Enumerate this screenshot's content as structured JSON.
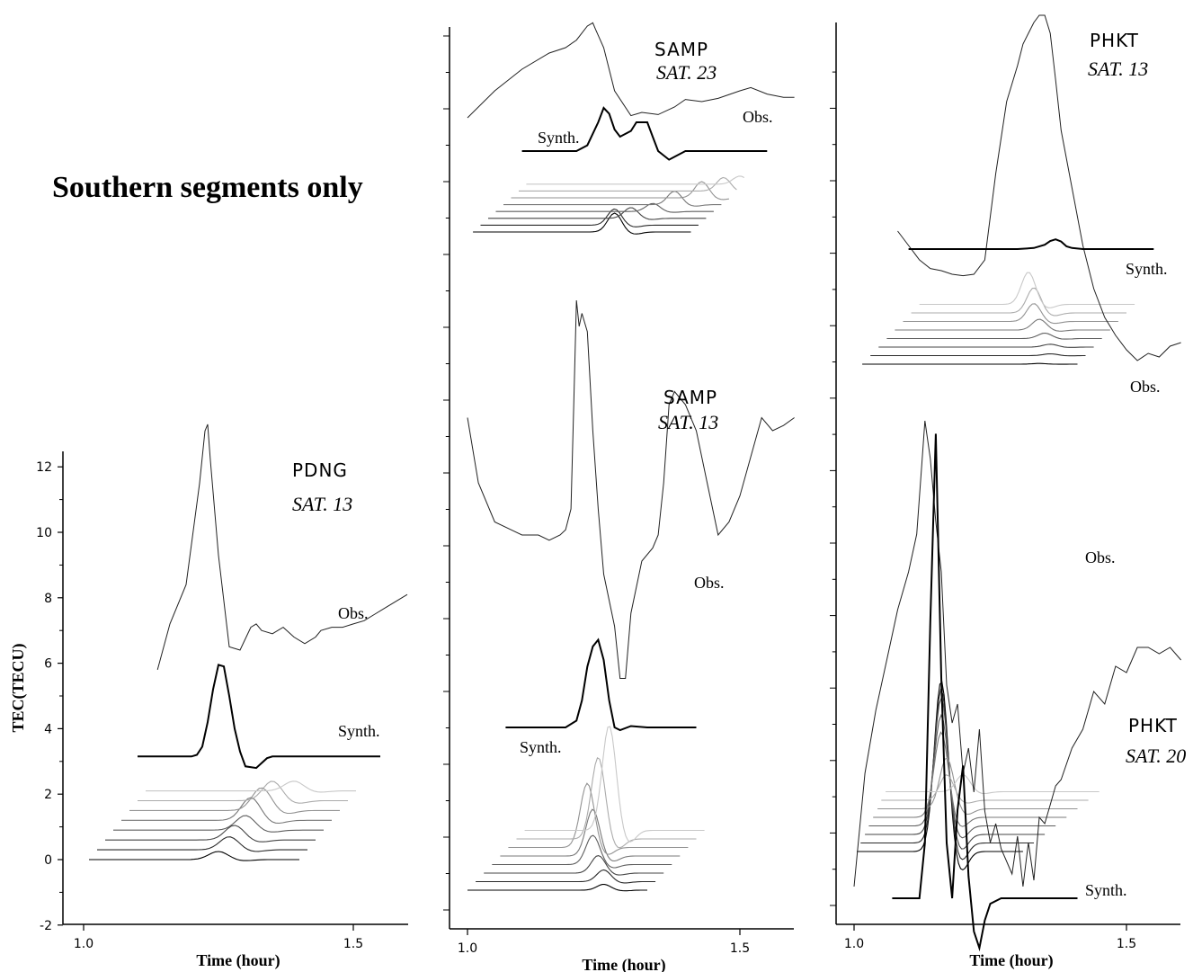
{
  "figure": {
    "title": "Southern segments only"
  },
  "chart_data": [
    {
      "type": "line",
      "station": "PDNG",
      "satellite": "SAT. 13",
      "xlabel": "Time (hour)",
      "ylabel": "TEC(TECU)",
      "xticks": [
        "1.0",
        "1.5"
      ],
      "yticks": [
        "-2",
        "0",
        "2",
        "4",
        "6",
        "8",
        "10",
        "12"
      ],
      "xlim": [
        0.98,
        1.6
      ],
      "ylim": [
        -2,
        12.6
      ],
      "labels": {
        "obs": "Obs.",
        "synth": "Synth."
      },
      "series": [
        {
          "name": "Obs.",
          "x": [
            1.137,
            1.16,
            1.19,
            1.215,
            1.225,
            1.23,
            1.235,
            1.25,
            1.27,
            1.29,
            1.31,
            1.32,
            1.33,
            1.35,
            1.37,
            1.39,
            1.41,
            1.43,
            1.44,
            1.46,
            1.48,
            1.5,
            1.52,
            1.54,
            1.56,
            1.58,
            1.6
          ],
          "y": [
            5.8,
            7.2,
            8.4,
            11.5,
            13.1,
            13.3,
            12.2,
            9.3,
            6.5,
            6.4,
            7.1,
            7.2,
            7.0,
            6.9,
            7.1,
            6.8,
            6.6,
            6.8,
            7.0,
            7.1,
            7.1,
            7.2,
            7.3,
            7.5,
            7.7,
            7.9,
            8.1
          ]
        },
        {
          "name": "Synth.",
          "x": [
            1.1,
            1.18,
            1.2,
            1.21,
            1.22,
            1.23,
            1.24,
            1.25,
            1.26,
            1.27,
            1.28,
            1.29,
            1.3,
            1.32,
            1.33,
            1.34,
            1.35,
            1.37,
            1.4,
            1.45,
            1.55
          ],
          "y": [
            3.15,
            3.15,
            3.15,
            3.2,
            3.45,
            4.2,
            5.2,
            5.95,
            5.9,
            5.0,
            4.0,
            3.3,
            2.85,
            2.8,
            2.95,
            3.1,
            3.15,
            3.15,
            3.15,
            3.15,
            3.15
          ]
        }
      ],
      "stack": {
        "count": 8,
        "x0": [
          1.01,
          1.025,
          1.04,
          1.055,
          1.07,
          1.085,
          1.1,
          1.115
        ],
        "x1": [
          1.4,
          1.415,
          1.43,
          1.445,
          1.46,
          1.475,
          1.49,
          1.505
        ],
        "y": [
          0.0,
          0.3,
          0.6,
          0.9,
          1.2,
          1.5,
          1.8,
          2.1
        ],
        "peak_x": [
          1.25,
          1.27,
          1.28,
          1.3,
          1.31,
          1.33,
          1.35,
          1.39
        ],
        "peak_amp": [
          0.25,
          0.4,
          0.45,
          0.45,
          0.7,
          0.7,
          0.6,
          0.3
        ],
        "colors": [
          "#000000",
          "#2a2a2a",
          "#444444",
          "#5e5e5e",
          "#787878",
          "#929292",
          "#ababab",
          "#c8c8c8"
        ]
      }
    },
    {
      "type": "line",
      "station": "SAMP",
      "satellite": "SAT. 23",
      "labels": {
        "obs": "Obs.",
        "synth": "Synth."
      },
      "xlabel": "Time (hour)",
      "xticks": [
        "1.0",
        "1.5"
      ],
      "series": [
        {
          "name": "Obs.",
          "x": [
            1.0,
            1.05,
            1.1,
            1.15,
            1.18,
            1.2,
            1.22,
            1.23,
            1.235,
            1.25,
            1.27,
            1.3,
            1.32,
            1.35,
            1.38,
            1.4,
            1.43,
            1.46,
            1.5,
            1.52,
            1.55,
            1.58,
            1.6
          ],
          "y": [
            0.0,
            0.25,
            0.45,
            0.6,
            0.65,
            0.72,
            0.85,
            0.88,
            0.82,
            0.65,
            0.25,
            0.02,
            0.05,
            0.03,
            0.1,
            0.17,
            0.15,
            0.18,
            0.25,
            0.28,
            0.22,
            0.19,
            0.19
          ]
        },
        {
          "name": "Synth.",
          "x": [
            1.1,
            1.2,
            1.22,
            1.24,
            1.25,
            1.26,
            1.27,
            1.28,
            1.3,
            1.31,
            1.33,
            1.34,
            1.35,
            1.37,
            1.38,
            1.4,
            1.42,
            1.55
          ],
          "y": [
            0.0,
            0.0,
            0.04,
            0.2,
            0.3,
            0.26,
            0.15,
            0.1,
            0.14,
            0.2,
            0.2,
            0.1,
            0.0,
            -0.06,
            -0.04,
            0.0,
            0.0,
            0.0
          ]
        }
      ],
      "stack": {
        "count": 8,
        "x0": [
          1.01,
          1.024,
          1.038,
          1.052,
          1.066,
          1.08,
          1.094,
          1.108
        ],
        "x1": [
          1.41,
          1.424,
          1.438,
          1.452,
          1.466,
          1.48,
          1.494,
          1.508
        ],
        "peak_x": [
          1.27,
          1.27,
          1.3,
          1.34,
          1.38,
          1.43,
          1.47,
          1.5
        ],
        "peak_amp": [
          0.35,
          0.3,
          0.2,
          0.15,
          0.25,
          0.3,
          0.25,
          0.15
        ],
        "colors": [
          "#000000",
          "#2a2a2a",
          "#444444",
          "#5e5e5e",
          "#787878",
          "#929292",
          "#ababab",
          "#c8c8c8"
        ]
      }
    },
    {
      "type": "line",
      "station": "SAMP",
      "satellite": "SAT. 13",
      "labels": {
        "obs": "Obs.",
        "synth": "Synth."
      },
      "series": [
        {
          "name": "Obs.",
          "x": [
            1.0,
            1.02,
            1.05,
            1.08,
            1.1,
            1.13,
            1.15,
            1.17,
            1.18,
            1.19,
            1.195,
            1.2,
            1.205,
            1.21,
            1.22,
            1.23,
            1.24,
            1.25,
            1.27,
            1.28,
            1.29,
            1.3,
            1.32,
            1.34,
            1.35,
            1.36,
            1.37,
            1.38,
            1.4,
            1.42,
            1.44,
            1.46,
            1.48,
            1.5,
            1.52,
            1.54,
            1.56,
            1.58,
            1.6
          ],
          "y": [
            0.55,
            0.3,
            0.15,
            0.12,
            0.1,
            0.1,
            0.08,
            0.1,
            0.12,
            0.2,
            0.6,
            1.0,
            0.9,
            0.95,
            0.88,
            0.5,
            0.2,
            -0.05,
            -0.25,
            -0.45,
            -0.45,
            -0.2,
            0.0,
            0.05,
            0.1,
            0.3,
            0.6,
            0.65,
            0.6,
            0.5,
            0.3,
            0.1,
            0.15,
            0.25,
            0.4,
            0.55,
            0.5,
            0.52,
            0.55
          ]
        },
        {
          "name": "Synth.",
          "x": [
            1.07,
            1.18,
            1.2,
            1.21,
            1.22,
            1.23,
            1.24,
            1.25,
            1.26,
            1.27,
            1.28,
            1.3,
            1.33,
            1.42
          ],
          "y": [
            0.0,
            0.0,
            0.05,
            0.2,
            0.45,
            0.6,
            0.65,
            0.5,
            0.2,
            0.0,
            -0.02,
            0.01,
            0.0,
            0.0
          ]
        }
      ],
      "stack": {
        "count": 8,
        "x0": [
          1.0,
          1.015,
          1.03,
          1.045,
          1.06,
          1.075,
          1.09,
          1.105
        ],
        "x1": [
          1.33,
          1.345,
          1.36,
          1.375,
          1.39,
          1.405,
          1.42,
          1.435
        ],
        "peak_x": [
          1.25,
          1.25,
          1.24,
          1.23,
          1.23,
          1.22,
          1.24,
          1.26
        ],
        "peak_amp": [
          0.05,
          0.1,
          0.15,
          0.25,
          0.4,
          0.55,
          0.7,
          0.9
        ],
        "colors": [
          "#000000",
          "#2a2a2a",
          "#444444",
          "#5e5e5e",
          "#787878",
          "#929292",
          "#ababab",
          "#c8c8c8"
        ]
      }
    },
    {
      "type": "line",
      "station": "PHKT",
      "satellite": "SAT. 13",
      "labels": {
        "obs": "Obs.",
        "synth": "Synth."
      },
      "series": [
        {
          "name": "Obs.",
          "x": [
            1.08,
            1.1,
            1.12,
            1.14,
            1.16,
            1.18,
            1.2,
            1.22,
            1.24,
            1.26,
            1.28,
            1.3,
            1.31,
            1.33,
            1.34,
            1.35,
            1.36,
            1.37,
            1.38,
            1.4,
            1.42,
            1.44,
            1.46,
            1.48,
            1.5,
            1.52,
            1.54,
            1.56,
            1.58,
            1.6
          ],
          "y": [
            0.6,
            0.4,
            0.2,
            0.08,
            0.05,
            0.0,
            -0.02,
            0.0,
            0.2,
            1.4,
            2.4,
            2.9,
            3.2,
            3.5,
            3.6,
            3.6,
            3.35,
            2.7,
            2.0,
            1.2,
            0.4,
            -0.2,
            -0.6,
            -0.85,
            -1.05,
            -1.2,
            -1.1,
            -1.15,
            -1.0,
            -0.95
          ]
        },
        {
          "name": "Synth.",
          "x": [
            1.1,
            1.3,
            1.33,
            1.35,
            1.36,
            1.37,
            1.38,
            1.39,
            1.4,
            1.42,
            1.44,
            1.55
          ],
          "y": [
            0.0,
            0.0,
            0.02,
            0.08,
            0.15,
            0.18,
            0.14,
            0.05,
            0.02,
            0.0,
            0.0,
            0.0
          ]
        }
      ],
      "stack": {
        "count": 8,
        "x0": [
          1.015,
          1.03,
          1.045,
          1.06,
          1.075,
          1.09,
          1.105,
          1.12
        ],
        "x1": [
          1.41,
          1.425,
          1.44,
          1.455,
          1.47,
          1.485,
          1.5,
          1.515
        ],
        "peak_x": [
          1.34,
          1.36,
          1.36,
          1.35,
          1.34,
          1.33,
          1.33,
          1.32
        ],
        "peak_amp": [
          0.02,
          0.05,
          0.08,
          0.15,
          0.3,
          0.5,
          0.7,
          0.9
        ],
        "colors": [
          "#000000",
          "#2a2a2a",
          "#444444",
          "#5e5e5e",
          "#787878",
          "#929292",
          "#ababab",
          "#c8c8c8"
        ]
      }
    },
    {
      "type": "line",
      "station": "PHKT",
      "satellite": "SAT. 20",
      "labels": {
        "obs": "Obs.",
        "synth": "Synth."
      },
      "xlabel": "Time (hour)",
      "xticks": [
        "1.0",
        "1.5"
      ],
      "series": [
        {
          "name": "Obs.",
          "x": [
            1.0,
            1.02,
            1.04,
            1.06,
            1.08,
            1.1,
            1.115,
            1.125,
            1.13,
            1.14,
            1.15,
            1.16,
            1.17,
            1.18,
            1.19,
            1.2,
            1.21,
            1.22,
            1.23,
            1.24,
            1.25,
            1.26,
            1.27,
            1.28,
            1.29,
            1.3,
            1.31,
            1.32,
            1.33,
            1.34,
            1.35,
            1.36,
            1.37,
            1.38,
            1.4,
            1.42,
            1.44,
            1.46,
            1.48,
            1.5,
            1.52,
            1.54,
            1.56,
            1.58,
            1.6
          ],
          "y": [
            -0.9,
            0.0,
            0.5,
            0.9,
            1.3,
            1.6,
            1.9,
            2.5,
            2.8,
            2.5,
            2.0,
            1.6,
            0.7,
            0.4,
            0.55,
            0.0,
            0.2,
            -0.15,
            0.35,
            -0.3,
            -0.55,
            -0.4,
            -0.6,
            -0.7,
            -0.8,
            -0.5,
            -0.9,
            -0.55,
            -0.85,
            -0.35,
            -0.4,
            -0.25,
            -0.1,
            -0.05,
            0.2,
            0.35,
            0.65,
            0.55,
            0.85,
            0.8,
            1.0,
            1.0,
            0.95,
            1.0,
            0.9
          ]
        },
        {
          "name": "Synth.",
          "x": [
            1.07,
            1.12,
            1.13,
            1.14,
            1.15,
            1.16,
            1.17,
            1.18,
            1.19,
            1.2,
            1.21,
            1.22,
            1.23,
            1.24,
            1.25,
            1.27,
            1.3,
            1.41
          ],
          "y": [
            0.0,
            0.0,
            0.5,
            2.5,
            4.2,
            2.0,
            0.5,
            0.0,
            0.8,
            1.2,
            0.2,
            -0.3,
            -0.45,
            -0.2,
            -0.05,
            0.0,
            0.0,
            0.0
          ]
        }
      ],
      "stack": {
        "count": 8,
        "x0": [
          1.005,
          1.012,
          1.02,
          1.027,
          1.035,
          1.043,
          1.05,
          1.058
        ],
        "x1": [
          1.31,
          1.33,
          1.35,
          1.37,
          1.39,
          1.41,
          1.43,
          1.45
        ],
        "peak_x": [
          1.16,
          1.16,
          1.16,
          1.16,
          1.16,
          1.17,
          1.17,
          1.2
        ],
        "peak_amp": [
          2.0,
          1.8,
          1.6,
          1.3,
          1.0,
          0.6,
          0.3,
          0.2
        ],
        "colors": [
          "#000000",
          "#2a2a2a",
          "#444444",
          "#5e5e5e",
          "#787878",
          "#929292",
          "#ababab",
          "#c8c8c8"
        ]
      }
    }
  ]
}
